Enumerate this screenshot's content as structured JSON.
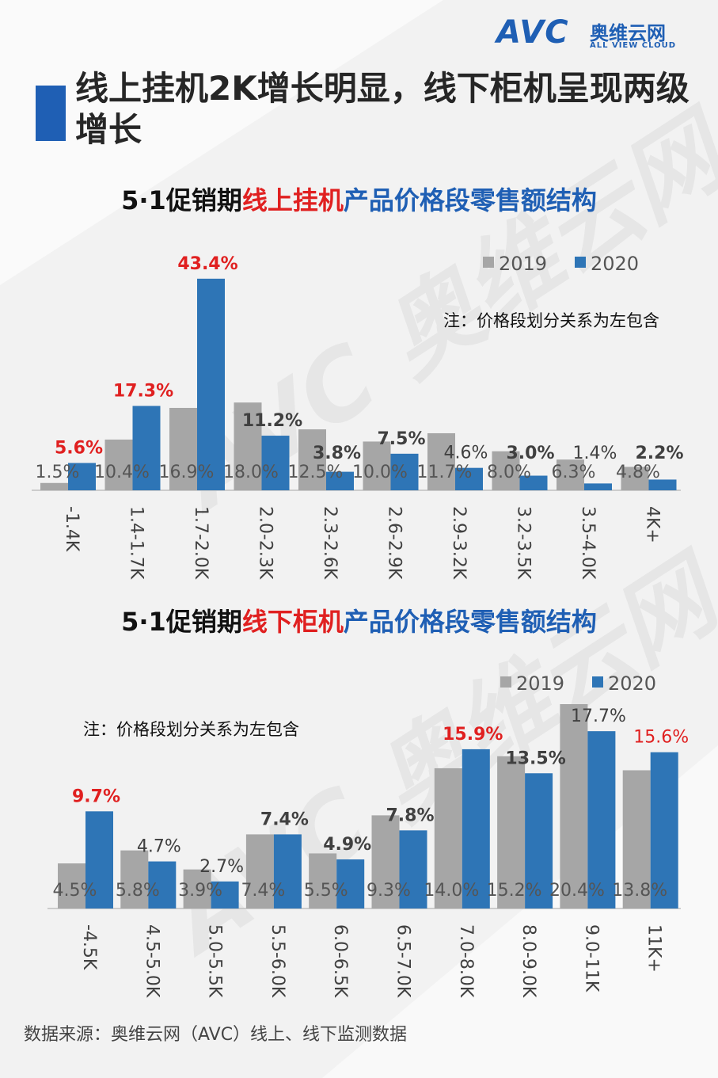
{
  "brand": {
    "logo_text": "AVC",
    "name_cn": "奥维云网",
    "name_en": "ALL VIEW CLOUD",
    "watermark": "AVC 奥维云网"
  },
  "title": "线上挂机2K增长明显，线下柜机呈现两级增长",
  "source": "数据来源：奥维云网（AVC）线上、线下监测数据",
  "colors": {
    "series_2019": "#a6a6a6",
    "series_2020": "#2e75b6",
    "highlight": "#e02020",
    "accent": "#1f5fb4"
  },
  "charts": [
    {
      "subtitle_parts": [
        {
          "text": "5·1促销期",
          "style": "blk"
        },
        {
          "text": "线上挂机",
          "style": "red"
        },
        {
          "text": "产品价格段零售额结构",
          "style": "blue"
        }
      ],
      "note": "注：价格段划分关系为左包含"
    },
    {
      "subtitle_parts": [
        {
          "text": "5·1促销期",
          "style": "blk"
        },
        {
          "text": "线下柜机",
          "style": "red"
        },
        {
          "text": "产品价格段零售额结构",
          "style": "blue"
        }
      ],
      "note": "注：价格段划分关系为左包含"
    }
  ],
  "chart_data": [
    {
      "type": "bar",
      "categories": [
        "-1.4K",
        "1.4-1.7K",
        "1.7-2.0K",
        "2.0-2.3K",
        "2.3-2.6K",
        "2.6-2.9K",
        "2.9-3.2K",
        "3.2-3.5K",
        "3.5-4.0K",
        "4K+"
      ],
      "series": [
        {
          "name": "2019",
          "values": [
            1.5,
            10.4,
            16.9,
            18.0,
            12.5,
            10.0,
            11.7,
            8.0,
            6.3,
            4.8
          ],
          "labels": [
            "1.5%",
            "10.4%",
            "16.9%",
            "18.0%",
            "12.5%",
            "10.0%",
            "11.7%",
            "8.0%",
            "6.3%",
            "4.8%"
          ]
        },
        {
          "name": "2020",
          "values": [
            5.6,
            17.3,
            43.4,
            11.2,
            3.8,
            7.5,
            4.6,
            3.0,
            1.4,
            2.2
          ],
          "labels": [
            "5.6%",
            "17.3%",
            "43.4%",
            "11.2%",
            "3.8%",
            "7.5%",
            "4.6%",
            "3.0%",
            "1.4%",
            "2.2%"
          ]
        }
      ],
      "highlight_2020": [
        true,
        true,
        true,
        false,
        false,
        false,
        false,
        false,
        false,
        false
      ],
      "bold_2020": [
        true,
        true,
        true,
        true,
        true,
        true,
        false,
        true,
        false,
        true
      ],
      "legend": "top-right",
      "ylim": [
        0,
        45
      ]
    },
    {
      "type": "bar",
      "categories": [
        "-4.5K",
        "4.5-5.0K",
        "5.0-5.5K",
        "5.5-6.0K",
        "6.0-6.5K",
        "6.5-7.0K",
        "7.0-8.0K",
        "8.0-9.0K",
        "9.0-11K",
        "11K+"
      ],
      "series": [
        {
          "name": "2019",
          "values": [
            4.5,
            5.8,
            3.9,
            7.4,
            5.5,
            9.3,
            14.0,
            15.2,
            20.4,
            13.8
          ],
          "labels": [
            "4.5%",
            "5.8%",
            "3.9%",
            "7.4%",
            "5.5%",
            "9.3%",
            "14.0%",
            "15.2%",
            "20.4%",
            "13.8%"
          ]
        },
        {
          "name": "2020",
          "values": [
            9.7,
            4.7,
            2.7,
            7.4,
            4.9,
            7.8,
            15.9,
            13.5,
            17.7,
            15.6
          ],
          "labels": [
            "9.7%",
            "4.7%",
            "2.7%",
            "7.4%",
            "4.9%",
            "7.8%",
            "15.9%",
            "13.5%",
            "17.7%",
            "15.6%"
          ]
        }
      ],
      "highlight_2020": [
        true,
        false,
        false,
        false,
        false,
        false,
        true,
        false,
        false,
        true
      ],
      "bold_2020": [
        true,
        false,
        false,
        true,
        true,
        true,
        true,
        true,
        false,
        false
      ],
      "legend": "top-right",
      "ylim": [
        0,
        20.4
      ]
    }
  ]
}
